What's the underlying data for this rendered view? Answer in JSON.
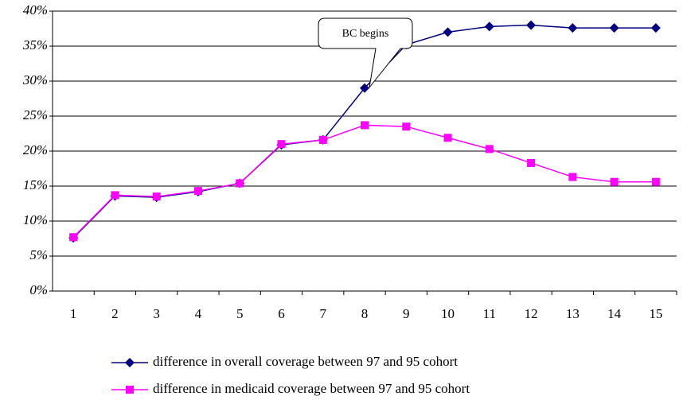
{
  "chart_data": {
    "type": "line",
    "categories": [
      "1",
      "2",
      "3",
      "4",
      "5",
      "6",
      "7",
      "8",
      "9",
      "10",
      "11",
      "12",
      "13",
      "14",
      "15"
    ],
    "series": [
      {
        "name": "difference in overall coverage between 97 and 95 cohort",
        "color": "#000080",
        "marker": "diamond",
        "values": [
          7.6,
          13.6,
          13.4,
          14.2,
          15.4,
          20.9,
          21.6,
          29.0,
          35.2,
          37.0,
          37.8,
          38.0,
          37.6,
          37.6,
          37.6
        ]
      },
      {
        "name": "difference in medicaid coverage between 97 and 95 cohort",
        "color": "#ff00ff",
        "marker": "square",
        "values": [
          7.7,
          13.7,
          13.5,
          14.3,
          15.4,
          21.0,
          21.6,
          23.7,
          23.5,
          21.9,
          20.3,
          18.3,
          16.3,
          15.6,
          15.6
        ]
      }
    ],
    "ylim": [
      0,
      40
    ],
    "yticks": [
      {
        "value": 0,
        "label": "0%"
      },
      {
        "value": 5,
        "label": "5%"
      },
      {
        "value": 10,
        "label": "10%"
      },
      {
        "value": 15,
        "label": "15%"
      },
      {
        "value": 20,
        "label": "20%"
      },
      {
        "value": 25,
        "label": "25%"
      },
      {
        "value": 30,
        "label": "30%"
      },
      {
        "value": 35,
        "label": "35%"
      },
      {
        "value": 40,
        "label": "40%"
      }
    ],
    "grid": true,
    "annotation": "BC begins",
    "legend": "bottom"
  }
}
